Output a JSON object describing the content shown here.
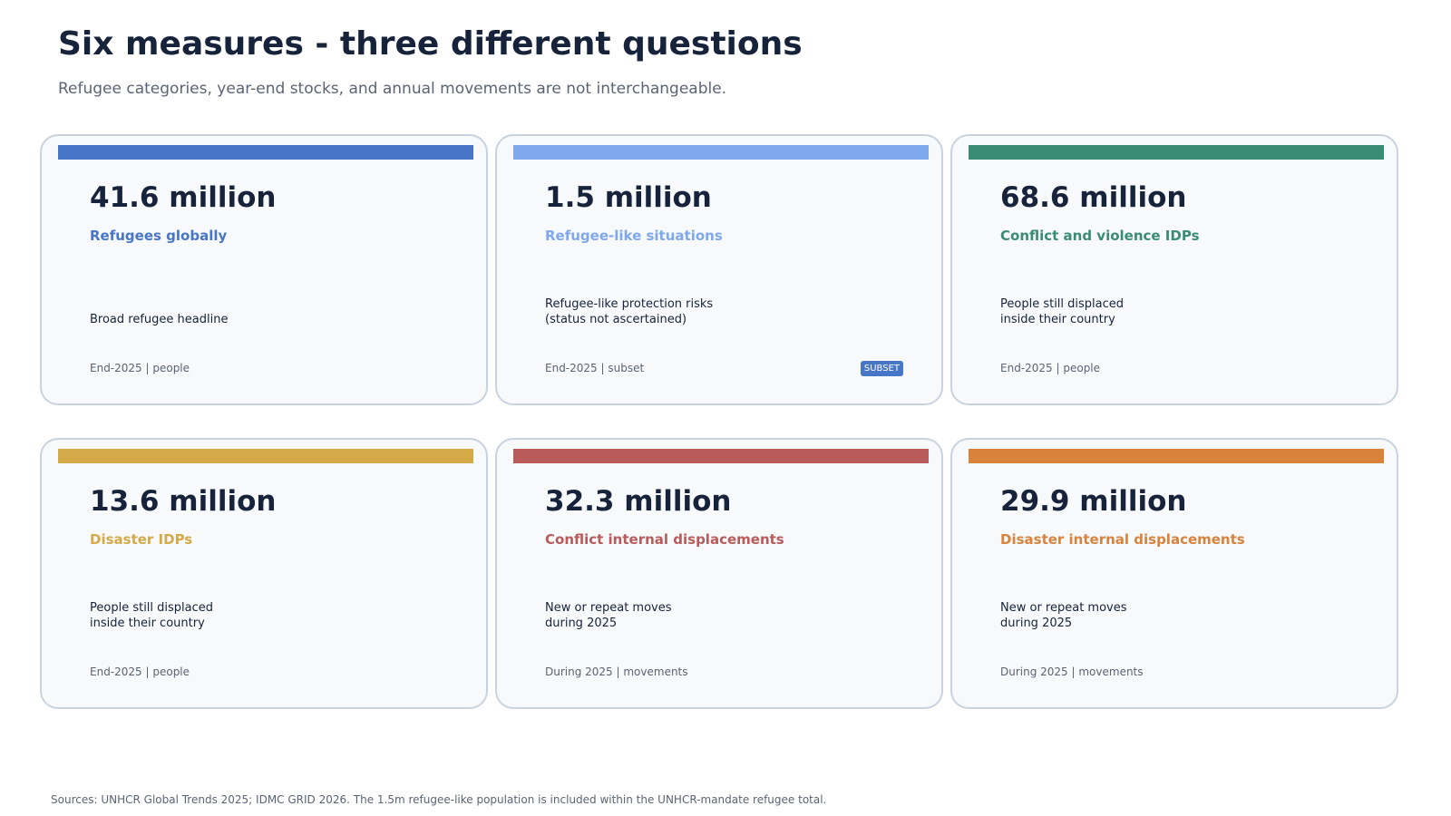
{
  "header": {
    "title": "Six measures - three different questions",
    "subtitle": "Refugee categories, year-end stocks, and annual movements are not interchangeable."
  },
  "chart_data": {
    "type": "table",
    "cards": [
      {
        "value": 41.6,
        "value_text": "41.6 million",
        "label": "Refugees globally",
        "description": "Broad refugee headline",
        "meta": "End-2025 | people",
        "badge": "",
        "color": "#4876c6"
      },
      {
        "value": 1.5,
        "value_text": "1.5 million",
        "label": "Refugee-like situations",
        "description": "Refugee-like protection risks\n(status not ascertained)",
        "meta": "End-2025 | subset",
        "badge": "SUBSET",
        "color": "#7fa8ee"
      },
      {
        "value": 68.6,
        "value_text": "68.6 million",
        "label": "Conflict and violence IDPs",
        "description": "People still displaced\ninside their country",
        "meta": "End-2025 | people",
        "badge": "",
        "color": "#3a8c72"
      },
      {
        "value": 13.6,
        "value_text": "13.6 million",
        "label": "Disaster IDPs",
        "description": "People still displaced\ninside their country",
        "meta": "End-2025 | people",
        "badge": "",
        "color": "#d4aa48"
      },
      {
        "value": 32.3,
        "value_text": "32.3 million",
        "label": "Conflict internal displacements",
        "description": "New or repeat moves\nduring 2025",
        "meta": "During 2025 | movements",
        "badge": "",
        "color": "#b85b5a"
      },
      {
        "value": 29.9,
        "value_text": "29.9 million",
        "label": "Disaster internal displacements",
        "description": "New or repeat moves\nduring 2025",
        "meta": "During 2025 | movements",
        "badge": "",
        "color": "#d8823c"
      }
    ]
  },
  "footer": {
    "sources": "Sources: UNHCR Global Trends 2025; IDMC GRID 2026. The 1.5m refugee-like population is included within the UNHCR-mandate refugee total."
  }
}
